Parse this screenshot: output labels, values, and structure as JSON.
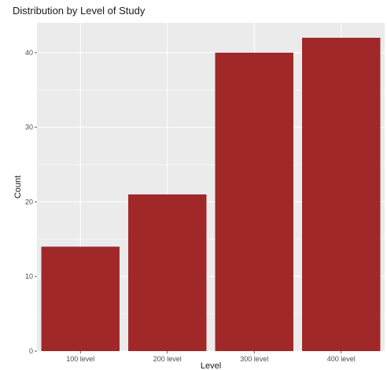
{
  "chart_data": {
    "type": "bar",
    "title": "Distribution by Level of Study",
    "xlabel": "Level",
    "ylabel": "Count",
    "categories": [
      "100 level",
      "200 level",
      "300 level",
      "400 level"
    ],
    "values": [
      14,
      21,
      40,
      42
    ],
    "ylim": [
      0,
      44
    ],
    "yticks": [
      0,
      10,
      20,
      30,
      40
    ],
    "grid": true,
    "bar_color": "#a02828",
    "panel_background": "#ebebeb",
    "gridline_color": "#ffffff"
  }
}
